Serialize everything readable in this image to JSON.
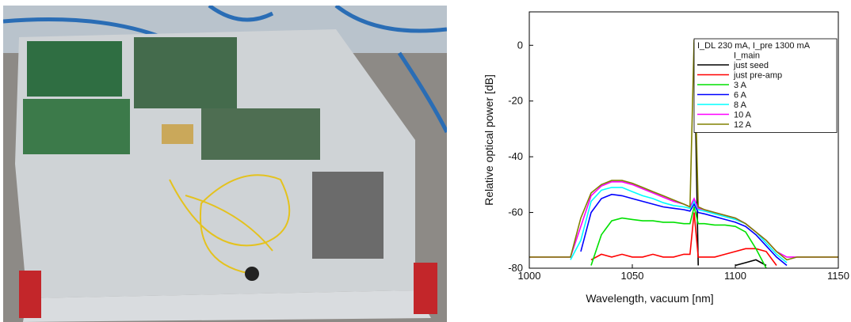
{
  "chart_data": {
    "type": "line",
    "x_label": "Wavelength, vacuum [nm]",
    "y_label": "Relative optical power [dB]",
    "legend_title": "I_DL 230 mA, I_pre 1300 mA",
    "legend_subtitle": "I_main",
    "legend_position": "upper right",
    "xlim": [
      1000,
      1150
    ],
    "xticks": [
      1000,
      1050,
      1100,
      1150
    ],
    "ylim": [
      -80,
      12
    ],
    "yticks": [
      0,
      -20,
      -40,
      -60,
      -80
    ],
    "x": [
      1000,
      1005,
      1010,
      1015,
      1020,
      1025,
      1030,
      1035,
      1040,
      1045,
      1050,
      1055,
      1060,
      1065,
      1070,
      1075,
      1078,
      1080,
      1082,
      1085,
      1090,
      1095,
      1100,
      1105,
      1110,
      1115,
      1120,
      1125,
      1130,
      1135,
      1140,
      1145,
      1150
    ],
    "series": [
      {
        "name": "just seed",
        "color": "#000000",
        "values": [
          null,
          null,
          null,
          null,
          null,
          null,
          null,
          null,
          null,
          null,
          null,
          null,
          null,
          null,
          null,
          null,
          null,
          1,
          -79,
          null,
          null,
          null,
          -79,
          -78,
          -77,
          -79,
          null,
          null,
          null,
          null,
          null,
          null,
          null
        ]
      },
      {
        "name": "just pre-amp",
        "color": "#ff0000",
        "values": [
          null,
          null,
          null,
          null,
          null,
          null,
          -77,
          -75,
          -76,
          -75,
          -76,
          -76,
          -75,
          -76,
          -76,
          -75,
          -75,
          -60,
          -76,
          -76,
          -76,
          -75,
          -74,
          -73,
          -73,
          -74,
          -79,
          null,
          null,
          null,
          null,
          null,
          null
        ]
      },
      {
        "name": "3 A",
        "color": "#00e000",
        "values": [
          null,
          null,
          null,
          null,
          null,
          null,
          -79,
          -68,
          -63,
          -62,
          -62.5,
          -63,
          -63,
          -63.5,
          -63.5,
          -64,
          -64,
          -58,
          -64,
          -64,
          -64.5,
          -64.5,
          -65,
          -67,
          -73,
          -80,
          null,
          null,
          null,
          null,
          null,
          null,
          null
        ]
      },
      {
        "name": "6 A",
        "color": "#0000ff",
        "values": [
          null,
          null,
          null,
          null,
          null,
          -74,
          -60,
          -55,
          -53.5,
          -54,
          -55,
          -56,
          -57,
          -58,
          -58.5,
          -59,
          -59.5,
          -57,
          -60,
          -60.5,
          -61.5,
          -62.5,
          -63.5,
          -65,
          -68,
          -72,
          -76,
          -79,
          null,
          null,
          null,
          null,
          null
        ]
      },
      {
        "name": "8 A",
        "color": "#00ffff",
        "values": [
          null,
          null,
          null,
          null,
          -77,
          -70,
          -56,
          -52,
          -51,
          -51,
          -52.5,
          -54,
          -55,
          -56.5,
          -57.5,
          -58,
          -58.5,
          -56,
          -59,
          -59.5,
          -60.5,
          -61.5,
          -62.5,
          -64,
          -67,
          -71,
          -75,
          -78,
          null,
          null,
          null,
          null,
          null
        ]
      },
      {
        "name": "10 A",
        "color": "#ff00ff",
        "values": [
          -76,
          -76,
          -76,
          -76,
          -76,
          -65,
          -54,
          -50.5,
          -49,
          -49,
          -50,
          -51.5,
          -53,
          -54.5,
          -56,
          -57,
          -58,
          -55,
          -58.5,
          -59,
          -60,
          -61,
          -62,
          -64,
          -67,
          -70,
          -74,
          -76,
          -76,
          -76,
          -76,
          -76,
          -76
        ]
      },
      {
        "name": "12 A",
        "color": "#808000",
        "values": [
          -76,
          -76,
          -76,
          -76,
          -76,
          -62,
          -53,
          -50,
          -48.5,
          -48.5,
          -49.5,
          -51,
          -52.5,
          -54,
          -55.5,
          -57,
          -58,
          2,
          -58,
          -59,
          -60,
          -61,
          -62,
          -64,
          -67,
          -70,
          -74,
          -77,
          -76,
          -76,
          -76,
          -76,
          -76
        ]
      }
    ]
  }
}
